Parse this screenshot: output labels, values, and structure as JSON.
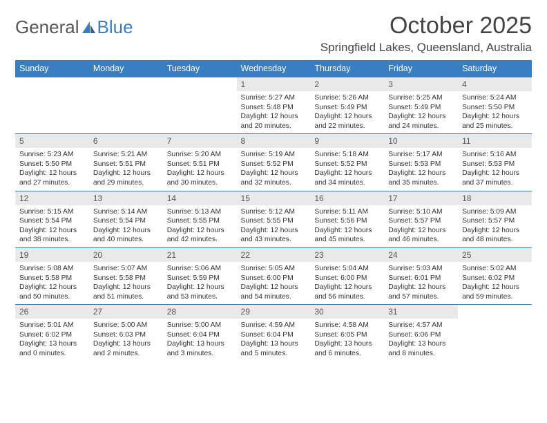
{
  "header": {
    "logo_a": "General",
    "logo_b": "Blue",
    "title": "October 2025",
    "subtitle": "Springfield Lakes, Queensland, Australia"
  },
  "columns": [
    "Sunday",
    "Monday",
    "Tuesday",
    "Wednesday",
    "Thursday",
    "Friday",
    "Saturday"
  ],
  "colors": {
    "brand": "#3a7ec2",
    "header_bg": "#3a7ec2",
    "header_fg": "#ffffff",
    "daynum_bg": "#e9e9e9",
    "text": "#333333",
    "bg": "#ffffff"
  },
  "weeks": [
    [
      {
        "n": "",
        "sr": "",
        "ss": "",
        "dl": ""
      },
      {
        "n": "",
        "sr": "",
        "ss": "",
        "dl": ""
      },
      {
        "n": "",
        "sr": "",
        "ss": "",
        "dl": ""
      },
      {
        "n": "1",
        "sr": "Sunrise: 5:27 AM",
        "ss": "Sunset: 5:48 PM",
        "dl": "Daylight: 12 hours and 20 minutes."
      },
      {
        "n": "2",
        "sr": "Sunrise: 5:26 AM",
        "ss": "Sunset: 5:49 PM",
        "dl": "Daylight: 12 hours and 22 minutes."
      },
      {
        "n": "3",
        "sr": "Sunrise: 5:25 AM",
        "ss": "Sunset: 5:49 PM",
        "dl": "Daylight: 12 hours and 24 minutes."
      },
      {
        "n": "4",
        "sr": "Sunrise: 5:24 AM",
        "ss": "Sunset: 5:50 PM",
        "dl": "Daylight: 12 hours and 25 minutes."
      }
    ],
    [
      {
        "n": "5",
        "sr": "Sunrise: 5:23 AM",
        "ss": "Sunset: 5:50 PM",
        "dl": "Daylight: 12 hours and 27 minutes."
      },
      {
        "n": "6",
        "sr": "Sunrise: 5:21 AM",
        "ss": "Sunset: 5:51 PM",
        "dl": "Daylight: 12 hours and 29 minutes."
      },
      {
        "n": "7",
        "sr": "Sunrise: 5:20 AM",
        "ss": "Sunset: 5:51 PM",
        "dl": "Daylight: 12 hours and 30 minutes."
      },
      {
        "n": "8",
        "sr": "Sunrise: 5:19 AM",
        "ss": "Sunset: 5:52 PM",
        "dl": "Daylight: 12 hours and 32 minutes."
      },
      {
        "n": "9",
        "sr": "Sunrise: 5:18 AM",
        "ss": "Sunset: 5:52 PM",
        "dl": "Daylight: 12 hours and 34 minutes."
      },
      {
        "n": "10",
        "sr": "Sunrise: 5:17 AM",
        "ss": "Sunset: 5:53 PM",
        "dl": "Daylight: 12 hours and 35 minutes."
      },
      {
        "n": "11",
        "sr": "Sunrise: 5:16 AM",
        "ss": "Sunset: 5:53 PM",
        "dl": "Daylight: 12 hours and 37 minutes."
      }
    ],
    [
      {
        "n": "12",
        "sr": "Sunrise: 5:15 AM",
        "ss": "Sunset: 5:54 PM",
        "dl": "Daylight: 12 hours and 38 minutes."
      },
      {
        "n": "13",
        "sr": "Sunrise: 5:14 AM",
        "ss": "Sunset: 5:54 PM",
        "dl": "Daylight: 12 hours and 40 minutes."
      },
      {
        "n": "14",
        "sr": "Sunrise: 5:13 AM",
        "ss": "Sunset: 5:55 PM",
        "dl": "Daylight: 12 hours and 42 minutes."
      },
      {
        "n": "15",
        "sr": "Sunrise: 5:12 AM",
        "ss": "Sunset: 5:55 PM",
        "dl": "Daylight: 12 hours and 43 minutes."
      },
      {
        "n": "16",
        "sr": "Sunrise: 5:11 AM",
        "ss": "Sunset: 5:56 PM",
        "dl": "Daylight: 12 hours and 45 minutes."
      },
      {
        "n": "17",
        "sr": "Sunrise: 5:10 AM",
        "ss": "Sunset: 5:57 PM",
        "dl": "Daylight: 12 hours and 46 minutes."
      },
      {
        "n": "18",
        "sr": "Sunrise: 5:09 AM",
        "ss": "Sunset: 5:57 PM",
        "dl": "Daylight: 12 hours and 48 minutes."
      }
    ],
    [
      {
        "n": "19",
        "sr": "Sunrise: 5:08 AM",
        "ss": "Sunset: 5:58 PM",
        "dl": "Daylight: 12 hours and 50 minutes."
      },
      {
        "n": "20",
        "sr": "Sunrise: 5:07 AM",
        "ss": "Sunset: 5:58 PM",
        "dl": "Daylight: 12 hours and 51 minutes."
      },
      {
        "n": "21",
        "sr": "Sunrise: 5:06 AM",
        "ss": "Sunset: 5:59 PM",
        "dl": "Daylight: 12 hours and 53 minutes."
      },
      {
        "n": "22",
        "sr": "Sunrise: 5:05 AM",
        "ss": "Sunset: 6:00 PM",
        "dl": "Daylight: 12 hours and 54 minutes."
      },
      {
        "n": "23",
        "sr": "Sunrise: 5:04 AM",
        "ss": "Sunset: 6:00 PM",
        "dl": "Daylight: 12 hours and 56 minutes."
      },
      {
        "n": "24",
        "sr": "Sunrise: 5:03 AM",
        "ss": "Sunset: 6:01 PM",
        "dl": "Daylight: 12 hours and 57 minutes."
      },
      {
        "n": "25",
        "sr": "Sunrise: 5:02 AM",
        "ss": "Sunset: 6:02 PM",
        "dl": "Daylight: 12 hours and 59 minutes."
      }
    ],
    [
      {
        "n": "26",
        "sr": "Sunrise: 5:01 AM",
        "ss": "Sunset: 6:02 PM",
        "dl": "Daylight: 13 hours and 0 minutes."
      },
      {
        "n": "27",
        "sr": "Sunrise: 5:00 AM",
        "ss": "Sunset: 6:03 PM",
        "dl": "Daylight: 13 hours and 2 minutes."
      },
      {
        "n": "28",
        "sr": "Sunrise: 5:00 AM",
        "ss": "Sunset: 6:04 PM",
        "dl": "Daylight: 13 hours and 3 minutes."
      },
      {
        "n": "29",
        "sr": "Sunrise: 4:59 AM",
        "ss": "Sunset: 6:04 PM",
        "dl": "Daylight: 13 hours and 5 minutes."
      },
      {
        "n": "30",
        "sr": "Sunrise: 4:58 AM",
        "ss": "Sunset: 6:05 PM",
        "dl": "Daylight: 13 hours and 6 minutes."
      },
      {
        "n": "31",
        "sr": "Sunrise: 4:57 AM",
        "ss": "Sunset: 6:06 PM",
        "dl": "Daylight: 13 hours and 8 minutes."
      },
      {
        "n": "",
        "sr": "",
        "ss": "",
        "dl": ""
      }
    ]
  ]
}
